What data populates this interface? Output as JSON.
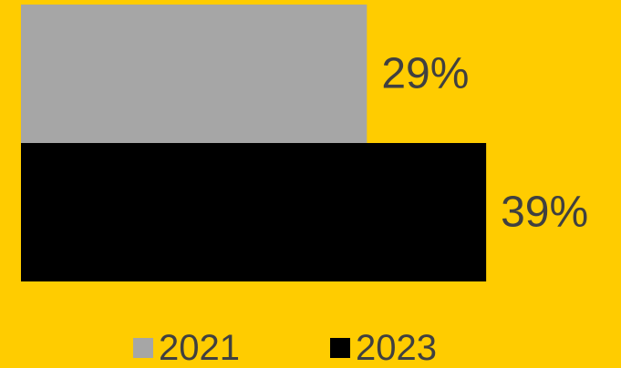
{
  "chart_data": {
    "type": "bar",
    "orientation": "horizontal",
    "title": "",
    "xlabel": "",
    "ylabel": "",
    "xlim": [
      0,
      50
    ],
    "grid": false,
    "legend_position": "bottom",
    "series": [
      {
        "name": "2021",
        "value": 29,
        "label": "29%",
        "color": "#A6A6A6"
      },
      {
        "name": "2023",
        "value": 39,
        "label": "39%",
        "color": "#000000"
      }
    ],
    "background_color": "#FFCC00",
    "label_color": "#404040"
  }
}
